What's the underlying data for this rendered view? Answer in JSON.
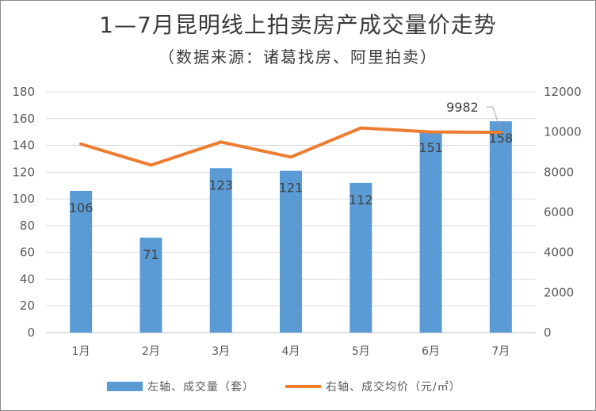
{
  "chart_data": {
    "type": "bar+line",
    "title": "1—7月昆明线上拍卖房产成交量价走势",
    "subtitle": "（数据来源：诸葛找房、阿里拍卖）",
    "categories": [
      "1月",
      "2月",
      "3月",
      "4月",
      "5月",
      "6月",
      "7月"
    ],
    "series": [
      {
        "name": "左轴、成交量（套）",
        "type": "bar",
        "axis": "left",
        "color": "#5b9bd5",
        "values": [
          106,
          71,
          123,
          121,
          112,
          151,
          158
        ],
        "labels": [
          "106",
          "71",
          "123",
          "121",
          "112",
          "151",
          "158"
        ]
      },
      {
        "name": "右轴、成交均价（元/㎡）",
        "type": "line",
        "axis": "right",
        "color": "#ed7d31",
        "values": [
          9400,
          8350,
          9500,
          8750,
          10200,
          10000,
          9982
        ],
        "labels": [
          "",
          "",
          "",
          "",
          "",
          "",
          "9982"
        ]
      }
    ],
    "left_axis": {
      "min": 0,
      "max": 180,
      "step": 20,
      "ticks": [
        "0",
        "20",
        "40",
        "60",
        "80",
        "100",
        "120",
        "140",
        "160",
        "180"
      ]
    },
    "right_axis": {
      "min": 0,
      "max": 12000,
      "step": 2000,
      "ticks": [
        "0",
        "2000",
        "4000",
        "6000",
        "8000",
        "10000",
        "12000"
      ]
    },
    "grid": true,
    "legend_position": "bottom"
  }
}
